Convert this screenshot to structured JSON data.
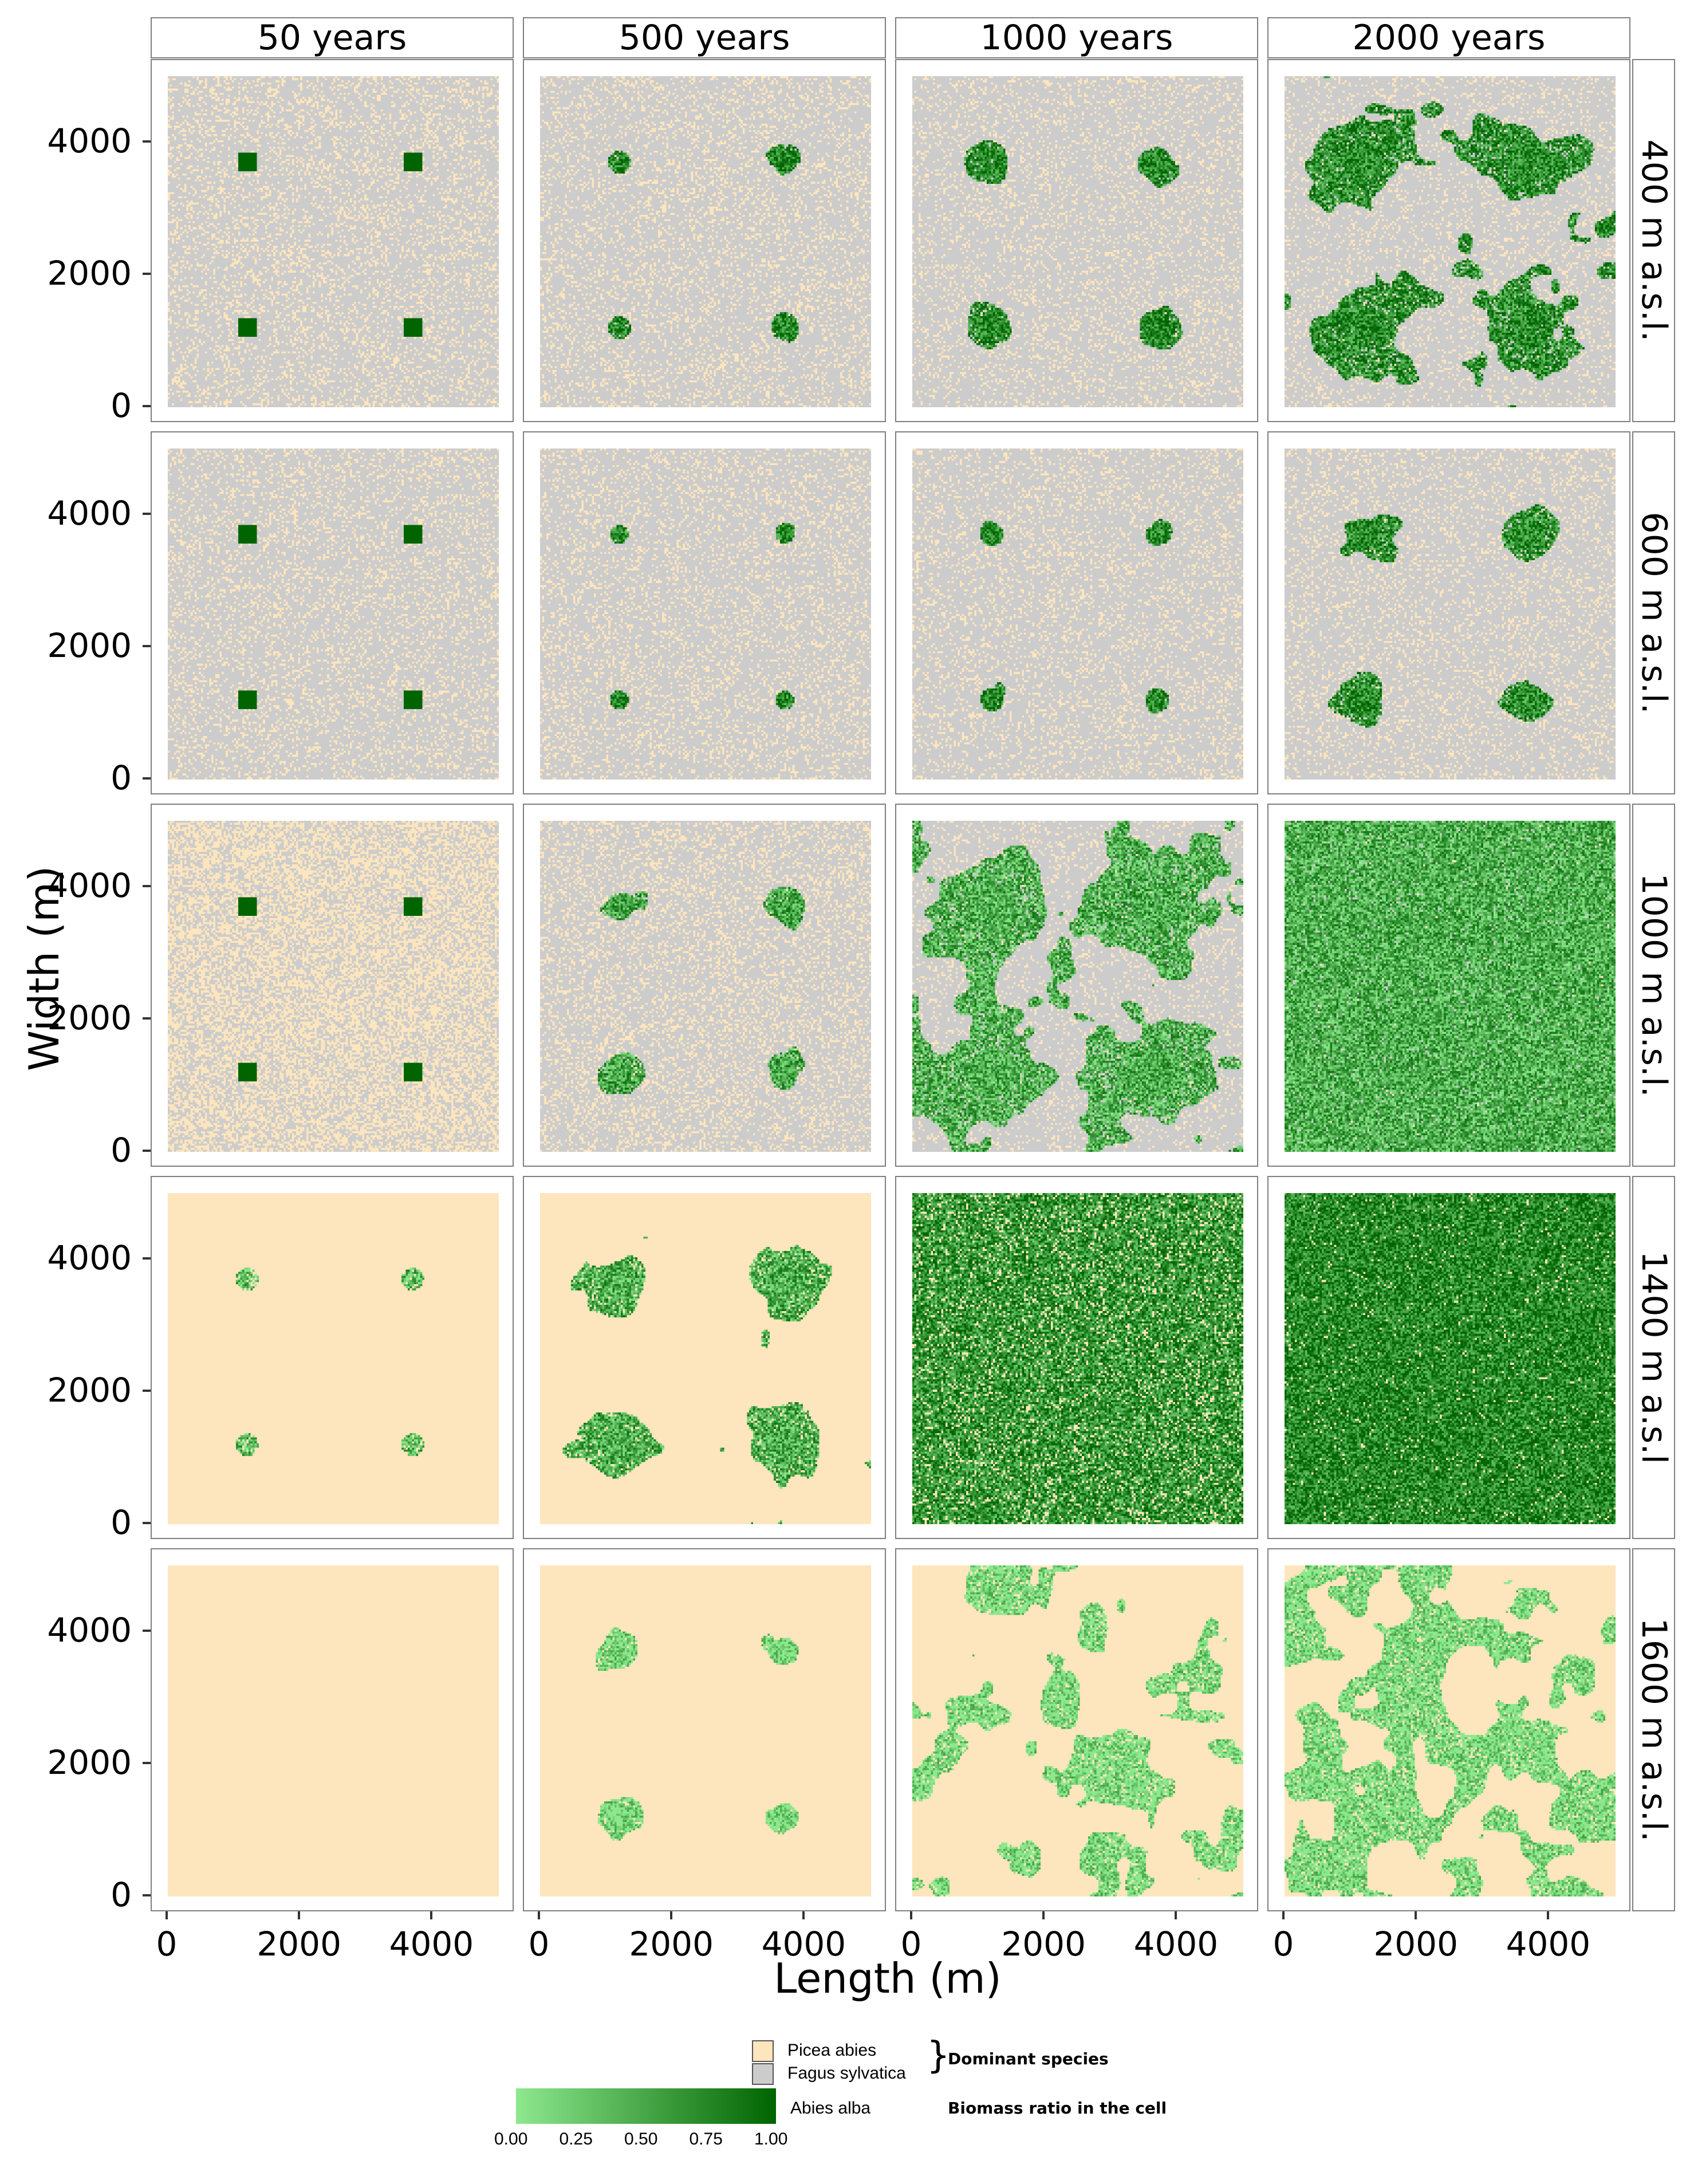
{
  "chart_data": {
    "type": "heatmap",
    "columns": [
      "50 years",
      "500 years",
      "1000 years",
      "2000 years"
    ],
    "rows": [
      "400 m a.s.l.",
      "600 m a.s.l.",
      "1000 m a.s.l.",
      "1400 m a.s.l",
      "1600 m a.s.l."
    ],
    "xlabel": "Length (m)",
    "ylabel": "Width (m)",
    "xlim": [
      0,
      5000
    ],
    "ylim": [
      0,
      5000
    ],
    "x_ticks": [
      "0",
      "2000",
      "4000"
    ],
    "y_ticks": [
      "0",
      "2000",
      "4000"
    ],
    "grid": true,
    "legend_position": "bottom",
    "colors": {
      "picea_abies": "#fde5bd",
      "fagus_sylvatica": "#cccccc",
      "abies_alba_low": "#8ee88e",
      "abies_alba_high": "#006400"
    },
    "abies_centers": [
      [
        1200,
        1200
      ],
      [
        1200,
        3700
      ],
      [
        3700,
        1200
      ],
      [
        3700,
        3700
      ]
    ],
    "panels": [
      [
        {
          "background": "fagus",
          "picea_fraction": 0.22,
          "abies_cover": 0.0,
          "mean_ratio": 0.95,
          "square_seeds": true
        },
        {
          "background": "fagus",
          "picea_fraction": 0.2,
          "abies_cover": 0.1,
          "mean_ratio": 0.75,
          "patch_radius": 320
        },
        {
          "background": "fagus",
          "picea_fraction": 0.18,
          "abies_cover": 0.22,
          "mean_ratio": 0.75,
          "patch_radius": 420
        },
        {
          "background": "fagus",
          "picea_fraction": 0.15,
          "abies_cover": 0.45,
          "mean_ratio": 0.7,
          "patch_radius": 600
        }
      ],
      [
        {
          "background": "fagus",
          "picea_fraction": 0.2,
          "abies_cover": 0.0,
          "mean_ratio": 0.95,
          "square_seeds": true
        },
        {
          "background": "fagus",
          "picea_fraction": 0.2,
          "abies_cover": 0.06,
          "mean_ratio": 0.75,
          "patch_radius": 260
        },
        {
          "background": "fagus",
          "picea_fraction": 0.18,
          "abies_cover": 0.12,
          "mean_ratio": 0.75,
          "patch_radius": 330
        },
        {
          "background": "fagus",
          "picea_fraction": 0.18,
          "abies_cover": 0.26,
          "mean_ratio": 0.7,
          "patch_radius": 450
        }
      ],
      [
        {
          "background": "fagus",
          "picea_fraction": 0.5,
          "abies_cover": 0.0,
          "mean_ratio": 0.95,
          "square_seeds": true
        },
        {
          "background": "fagus",
          "picea_fraction": 0.25,
          "abies_cover": 0.18,
          "mean_ratio": 0.5,
          "patch_radius": 380
        },
        {
          "background": "fagus",
          "picea_fraction": 0.15,
          "abies_cover": 0.5,
          "mean_ratio": 0.45,
          "patch_radius": 700
        },
        {
          "background": "fagus",
          "picea_fraction": 0.1,
          "abies_cover": 0.97,
          "mean_ratio": 0.45
        }
      ],
      [
        {
          "background": "picea",
          "picea_fraction": 1.0,
          "abies_cover": 0.0,
          "mean_ratio": 0.35,
          "small_seeds": true
        },
        {
          "background": "picea",
          "picea_fraction": 1.0,
          "abies_cover": 0.35,
          "mean_ratio": 0.45,
          "patch_radius": 500
        },
        {
          "background": "picea",
          "picea_fraction": 1.0,
          "abies_cover": 0.88,
          "mean_ratio": 0.65
        },
        {
          "background": "picea",
          "picea_fraction": 1.0,
          "abies_cover": 0.97,
          "mean_ratio": 0.75
        }
      ],
      [
        {
          "background": "picea",
          "picea_fraction": 1.0,
          "abies_cover": 0.0,
          "mean_ratio": 0.1
        },
        {
          "background": "picea",
          "picea_fraction": 1.0,
          "abies_cover": 0.2,
          "mean_ratio": 0.1,
          "patch_radius": 380
        },
        {
          "background": "picea",
          "picea_fraction": 1.0,
          "abies_cover": 0.55,
          "mean_ratio": 0.08
        },
        {
          "background": "picea",
          "picea_fraction": 1.0,
          "abies_cover": 0.6,
          "mean_ratio": 0.08
        }
      ]
    ]
  },
  "legend": {
    "picea_label": "Picea abies",
    "fagus_label": "Fagus sylvatica",
    "brace": "}",
    "dominant_label": "Dominant species",
    "abies_label": "Abies alba",
    "biomass_label": "Biomass ratio in the cell",
    "scale_ticks": [
      "0.00",
      "0.25",
      "0.50",
      "0.75",
      "1.00"
    ]
  }
}
